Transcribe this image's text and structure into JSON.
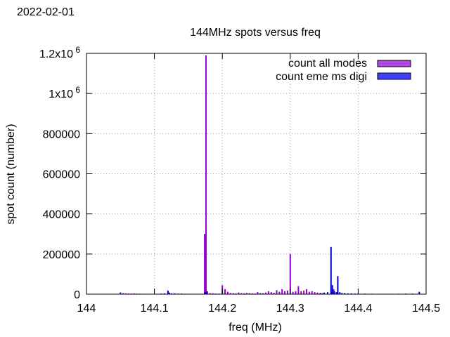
{
  "date_label": "2022-02-01",
  "chart_data": {
    "type": "bar",
    "title": "144MHz spots versus freq",
    "xlabel": "freq (MHz)",
    "ylabel": "spot count (number)",
    "xlim": [
      144,
      144.5
    ],
    "ylim": [
      0,
      1200000
    ],
    "grid": true,
    "legend_position": "top-right",
    "x_ticks": [
      {
        "value": 144,
        "label": "144"
      },
      {
        "value": 144.1,
        "label": "144.1"
      },
      {
        "value": 144.2,
        "label": "144.2"
      },
      {
        "value": 144.3,
        "label": "144.3"
      },
      {
        "value": 144.4,
        "label": "144.4"
      },
      {
        "value": 144.5,
        "label": "144.5"
      }
    ],
    "y_ticks": [
      {
        "value": 0,
        "label": "0"
      },
      {
        "value": 200000,
        "label": "200000"
      },
      {
        "value": 400000,
        "label": "400000"
      },
      {
        "value": 600000,
        "label": "600000"
      },
      {
        "value": 800000,
        "label": "800000"
      },
      {
        "value": 1000000,
        "label": "1x10",
        "sup": "6"
      },
      {
        "value": 1200000,
        "label": "1.2x10",
        "sup": "6"
      }
    ],
    "series": [
      {
        "name": "count all modes",
        "color": "#9400d3",
        "fill": "#b347e6",
        "points": [
          [
            144.05,
            9000
          ],
          [
            144.054,
            5000
          ],
          [
            144.058,
            4000
          ],
          [
            144.062,
            3500
          ],
          [
            144.066,
            3000
          ],
          [
            144.07,
            4000
          ],
          [
            144.074,
            3000
          ],
          [
            144.078,
            2500
          ],
          [
            144.085,
            2000
          ],
          [
            144.174,
            300000
          ],
          [
            144.176,
            1190000
          ],
          [
            144.178,
            15000
          ],
          [
            144.182,
            5000
          ],
          [
            144.186,
            4000
          ],
          [
            144.19,
            3000
          ],
          [
            144.195,
            3000
          ],
          [
            144.2,
            45000
          ],
          [
            144.204,
            25000
          ],
          [
            144.208,
            12000
          ],
          [
            144.212,
            6000
          ],
          [
            144.216,
            5000
          ],
          [
            144.22,
            4000
          ],
          [
            144.224,
            8000
          ],
          [
            144.228,
            5000
          ],
          [
            144.232,
            4000
          ],
          [
            144.236,
            6000
          ],
          [
            144.24,
            5000
          ],
          [
            144.244,
            4000
          ],
          [
            144.248,
            3000
          ],
          [
            144.252,
            10000
          ],
          [
            144.256,
            6000
          ],
          [
            144.26,
            5000
          ],
          [
            144.264,
            8000
          ],
          [
            144.268,
            15000
          ],
          [
            144.272,
            10000
          ],
          [
            144.276,
            7000
          ],
          [
            144.28,
            20000
          ],
          [
            144.284,
            12000
          ],
          [
            144.288,
            25000
          ],
          [
            144.292,
            15000
          ],
          [
            144.296,
            18000
          ],
          [
            144.3,
            200000
          ],
          [
            144.304,
            12000
          ],
          [
            144.308,
            15000
          ],
          [
            144.312,
            40000
          ],
          [
            144.316,
            15000
          ],
          [
            144.32,
            18000
          ],
          [
            144.324,
            25000
          ],
          [
            144.328,
            12000
          ],
          [
            144.332,
            15000
          ],
          [
            144.336,
            10000
          ],
          [
            144.34,
            8000
          ],
          [
            144.344,
            6000
          ],
          [
            144.348,
            5000
          ],
          [
            144.36,
            15000
          ],
          [
            144.364,
            25000
          ],
          [
            144.37,
            10000
          ],
          [
            144.38,
            5000
          ],
          [
            144.39,
            4000
          ],
          [
            144.4,
            3000
          ],
          [
            144.41,
            3000
          ],
          [
            144.42,
            2500
          ],
          [
            144.43,
            2000
          ],
          [
            144.44,
            2000
          ],
          [
            144.45,
            2000
          ],
          [
            144.46,
            2500
          ],
          [
            144.47,
            3000
          ],
          [
            144.48,
            3000
          ],
          [
            144.49,
            5000
          ]
        ]
      },
      {
        "name": "count eme ms digi",
        "color": "#0000cd",
        "fill": "#4040ff",
        "points": [
          [
            144.05,
            4000
          ],
          [
            144.1,
            2000
          ],
          [
            144.11,
            3000
          ],
          [
            144.115,
            4000
          ],
          [
            144.12,
            18000
          ],
          [
            144.122,
            8000
          ],
          [
            144.125,
            4000
          ],
          [
            144.13,
            4000
          ],
          [
            144.135,
            3000
          ],
          [
            144.14,
            3000
          ],
          [
            144.145,
            2000
          ],
          [
            144.15,
            2000
          ],
          [
            144.174,
            8000
          ],
          [
            144.176,
            10000
          ],
          [
            144.34,
            3000
          ],
          [
            144.345,
            5000
          ],
          [
            144.35,
            8000
          ],
          [
            144.355,
            10000
          ],
          [
            144.36,
            235000
          ],
          [
            144.362,
            45000
          ],
          [
            144.365,
            15000
          ],
          [
            144.368,
            10000
          ],
          [
            144.37,
            90000
          ],
          [
            144.373,
            10000
          ],
          [
            144.376,
            6000
          ],
          [
            144.38,
            5000
          ],
          [
            144.385,
            4000
          ],
          [
            144.39,
            3000
          ],
          [
            144.395,
            3000
          ],
          [
            144.4,
            2000
          ],
          [
            144.49,
            12000
          ]
        ]
      }
    ]
  }
}
